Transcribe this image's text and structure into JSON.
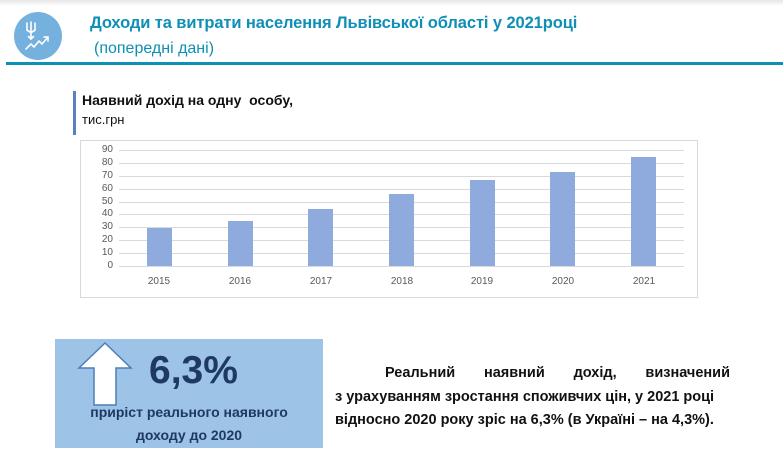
{
  "header": {
    "icon": "income-growth-icon",
    "title": "Доходи та витрати населення Львівської області у 2021році",
    "subtitle": "(попередні дані)",
    "colors": {
      "accent": "#0e8fb5",
      "logo_bg": "#74b1df"
    }
  },
  "chart_heading": {
    "title": "Наявний дохід на одну  особу,",
    "unit": "тис.грн"
  },
  "chart_data": {
    "type": "bar",
    "title": "Наявний дохід на одну особу, тис.грн",
    "xlabel": "",
    "ylabel": "тис.грн",
    "categories": [
      "2015",
      "2016",
      "2017",
      "2018",
      "2019",
      "2020",
      "2021"
    ],
    "values": [
      29.5,
      35.3,
      44.6,
      56.2,
      67.0,
      72.8,
      84.8
    ],
    "yticks": [
      "0",
      "10",
      "20",
      "30",
      "40",
      "50",
      "60",
      "70",
      "80",
      "90"
    ],
    "ylim": [
      0,
      90
    ],
    "grid": true,
    "legend": "none",
    "bar_color": "#8faadc"
  },
  "stat": {
    "icon": "arrow-up-icon",
    "value": "6,3%",
    "caption_line1": "приріст реального наявного",
    "caption_line2": "доходу до 2020",
    "colors": {
      "bg": "#9dc3e6",
      "text": "#1f3864"
    }
  },
  "description": {
    "line1_words": [
      "Реальний",
      "наявний",
      "дохід,",
      "визначений"
    ],
    "line2": "з урахуванням зростання споживчих цін, у 2021 році",
    "line3": "відносно 2020 року зріс на 6,3% (в Україні – на 4,3%)."
  }
}
